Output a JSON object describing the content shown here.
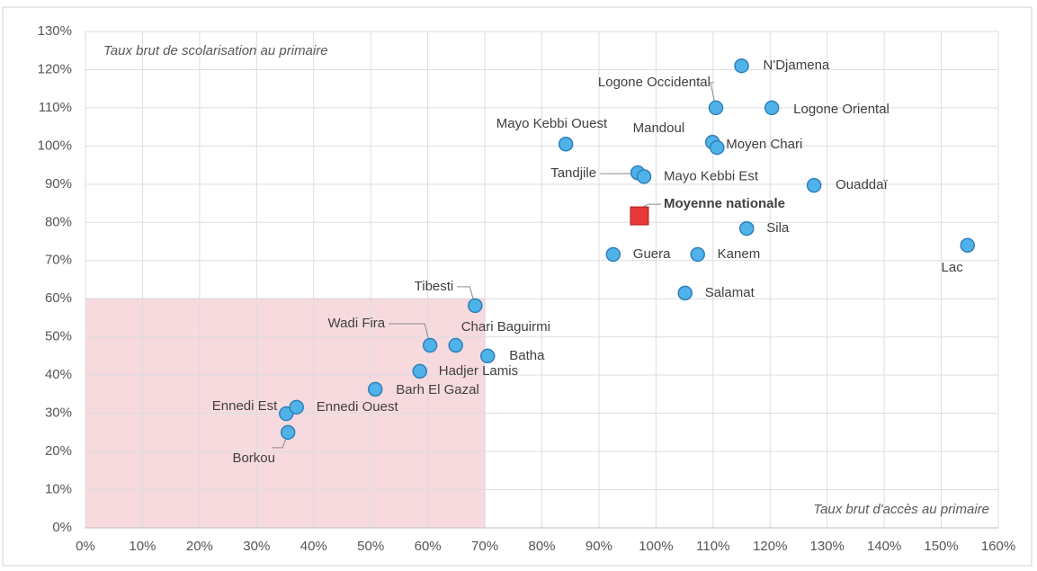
{
  "chart_data": {
    "type": "scatter",
    "annotations": [
      "Taux brut de scolarisation au primaire",
      "Taux brut d'accès au primaire"
    ],
    "labels": [
      "N'Djamena",
      "Logone Occidental",
      "Logone Oriental",
      "Mayo Kebbi Ouest",
      "Mandoul",
      "Moyen Chari",
      "Tandjile",
      "Mayo Kebbi Est",
      "Ouaddaï",
      "Sila",
      "Lac",
      "Guera",
      "Kanem",
      "Salamat",
      "Tibesti",
      "Wadi Fira",
      "Chari Baguirmi",
      "Batha",
      "Hadjer Lamis",
      "Barh El Gazal",
      "Ennedi Est",
      "Ennedi Ouest",
      "Borkou"
    ],
    "x": [
      115,
      110.5,
      120.3,
      84.2,
      109.9,
      110.7,
      96.8,
      97.9,
      127.7,
      115.9,
      154.6,
      92.5,
      107.3,
      105.1,
      68.3,
      60.4,
      64.9,
      70.5,
      58.6,
      50.8,
      35.2,
      37,
      35.5
    ],
    "values": [
      121,
      110,
      110,
      100.5,
      101,
      99.6,
      93,
      92,
      89.7,
      78.4,
      74,
      71.6,
      71.6,
      61.5,
      58.2,
      47.8,
      47.8,
      45,
      41,
      36.3,
      29.9,
      31.6,
      25
    ],
    "color": "#4fb3ea",
    "reference": {
      "label": "Moyenne nationale",
      "x": 97.1,
      "y": 81.7,
      "color": "#e8383a"
    },
    "shaded_region": {
      "x": [
        0,
        70
      ],
      "y": [
        0,
        60
      ],
      "color": "#f6d3d8"
    },
    "xlim": [
      0,
      160
    ],
    "xticks": [
      {
        "value": 0,
        "label": "0%"
      },
      {
        "value": 10,
        "label": "10%"
      },
      {
        "value": 20,
        "label": "20%"
      },
      {
        "value": 30,
        "label": "30%"
      },
      {
        "value": 40,
        "label": "40%"
      },
      {
        "value": 50,
        "label": "50%"
      },
      {
        "value": 60,
        "label": "60%"
      },
      {
        "value": 70,
        "label": "70%"
      },
      {
        "value": 80,
        "label": "80%"
      },
      {
        "value": 90,
        "label": "90%"
      },
      {
        "value": 100,
        "label": "100%"
      },
      {
        "value": 110,
        "label": "110%"
      },
      {
        "value": 120,
        "label": "120%"
      },
      {
        "value": 130,
        "label": "130%"
      },
      {
        "value": 140,
        "label": "140%"
      },
      {
        "value": 150,
        "label": "150%"
      },
      {
        "value": 160,
        "label": "160%"
      }
    ],
    "ylim": [
      0,
      130
    ],
    "yticks": [
      {
        "value": 0,
        "label": "0%"
      },
      {
        "value": 10,
        "label": "10%"
      },
      {
        "value": 20,
        "label": "20%"
      },
      {
        "value": 30,
        "label": "30%"
      },
      {
        "value": 40,
        "label": "40%"
      },
      {
        "value": 50,
        "label": "50%"
      },
      {
        "value": 60,
        "label": "60%"
      },
      {
        "value": 70,
        "label": "70%"
      },
      {
        "value": 80,
        "label": "80%"
      },
      {
        "value": 90,
        "label": "90%"
      },
      {
        "value": 100,
        "label": "100%"
      },
      {
        "value": 110,
        "label": "110%"
      },
      {
        "value": 120,
        "label": "120%"
      },
      {
        "value": 130,
        "label": "130%"
      }
    ],
    "grid": true
  }
}
